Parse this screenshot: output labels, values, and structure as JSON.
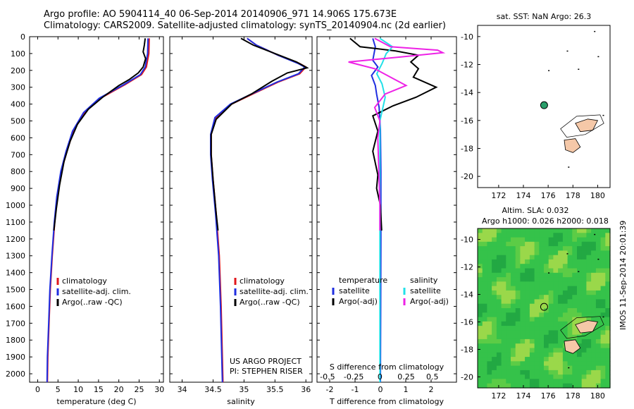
{
  "header": {
    "line1": "Argo profile: AO 5904114_40 06-Sep-2014 20140906_971 14.906S 175.673E",
    "line2": "Climatology: CARS2009. Satellite-adjusted climatology: synTS_20140904.nc (2d earlier)"
  },
  "colors": {
    "climatology": "#e0161b",
    "satellite": "#1f2ee0",
    "argo": "#000000",
    "sat_salinity": "#22e0e8",
    "argo_salinity": "#ee22e6",
    "land": "#f5c8a8",
    "float_marker": "#2a9e6a",
    "sla_green": "#35c24a"
  },
  "watermark": "IMOS 11-Sep-2014 20:01:39",
  "chart_data": [
    {
      "type": "line",
      "id": "temperature",
      "xlabel": "temperature (deg C)",
      "ylabel": "",
      "xlim": [
        -2,
        31
      ],
      "ylim": [
        2050,
        0
      ],
      "xticks": [
        0,
        5,
        10,
        15,
        20,
        25,
        30
      ],
      "yticks": [
        0,
        100,
        200,
        300,
        400,
        500,
        600,
        700,
        800,
        900,
        1000,
        1100,
        1200,
        1300,
        1400,
        1500,
        1600,
        1700,
        1800,
        1900,
        2000
      ],
      "legend": [
        "climatology",
        "satellite-adj. clim.",
        "Argo(..raw -QC)"
      ],
      "series": [
        {
          "name": "climatology",
          "color_key": "climatology",
          "points": [
            [
              27.5,
              10
            ],
            [
              27.4,
              100
            ],
            [
              26.8,
              180
            ],
            [
              25.6,
              225
            ],
            [
              21.5,
              285
            ],
            [
              15.5,
              365
            ],
            [
              11.5,
              450
            ],
            [
              8.8,
              560
            ],
            [
              7.2,
              680
            ],
            [
              5.8,
              800
            ],
            [
              4.8,
              950
            ],
            [
              4.2,
              1100
            ],
            [
              3.6,
              1300
            ],
            [
              3.1,
              1500
            ],
            [
              2.8,
              1700
            ],
            [
              2.5,
              1900
            ],
            [
              2.4,
              2050
            ]
          ]
        },
        {
          "name": "satellite-adj. clim.",
          "color_key": "satellite",
          "points": [
            [
              27.2,
              10
            ],
            [
              27.1,
              100
            ],
            [
              26.5,
              180
            ],
            [
              25.3,
              225
            ],
            [
              21.2,
              285
            ],
            [
              15.2,
              365
            ],
            [
              11.3,
              450
            ],
            [
              8.6,
              560
            ],
            [
              7.0,
              680
            ],
            [
              5.7,
              800
            ],
            [
              4.7,
              950
            ],
            [
              4.1,
              1100
            ],
            [
              3.5,
              1300
            ],
            [
              3.0,
              1500
            ],
            [
              2.7,
              1700
            ],
            [
              2.4,
              1900
            ],
            [
              2.3,
              2050
            ]
          ]
        },
        {
          "name": "Argo(..raw -QC)",
          "color_key": "argo",
          "points": [
            [
              26.5,
              10
            ],
            [
              26.3,
              50
            ],
            [
              26.0,
              90
            ],
            [
              26.6,
              130
            ],
            [
              26.0,
              180
            ],
            [
              24.8,
              215
            ],
            [
              22.5,
              255
            ],
            [
              20.0,
              290
            ],
            [
              16.0,
              360
            ],
            [
              12.5,
              430
            ],
            [
              9.8,
              520
            ],
            [
              8.0,
              620
            ],
            [
              6.5,
              740
            ],
            [
              5.4,
              880
            ],
            [
              4.6,
              1020
            ],
            [
              4.0,
              1150
            ]
          ]
        }
      ]
    },
    {
      "type": "line",
      "id": "salinity",
      "xlabel": "salinity",
      "ylabel": "",
      "xlim": [
        33.8,
        36.1
      ],
      "ylim": [
        2050,
        0
      ],
      "xticks": [
        34,
        34.5,
        35,
        35.5,
        36
      ],
      "legend": [
        "climatology",
        "satellite-adj. clim.",
        "Argo(..raw -QC)"
      ],
      "annotation": [
        "US ARGO PROJECT",
        "PI: STEPHEN RISER"
      ],
      "series": [
        {
          "name": "climatology",
          "color_key": "climatology",
          "points": [
            [
              35.05,
              10
            ],
            [
              35.2,
              50
            ],
            [
              35.55,
              110
            ],
            [
              35.9,
              160
            ],
            [
              36.0,
              180
            ],
            [
              35.9,
              220
            ],
            [
              35.55,
              270
            ],
            [
              35.2,
              330
            ],
            [
              34.8,
              400
            ],
            [
              34.55,
              480
            ],
            [
              34.47,
              580
            ],
            [
              34.47,
              700
            ],
            [
              34.5,
              850
            ],
            [
              34.55,
              1050
            ],
            [
              34.6,
              1300
            ],
            [
              34.63,
              1600
            ],
            [
              34.66,
              2050
            ]
          ]
        },
        {
          "name": "satellite-adj. clim.",
          "color_key": "satellite",
          "points": [
            [
              35.05,
              10
            ],
            [
              35.2,
              50
            ],
            [
              35.55,
              110
            ],
            [
              35.88,
              160
            ],
            [
              35.98,
              180
            ],
            [
              35.88,
              220
            ],
            [
              35.53,
              270
            ],
            [
              35.18,
              330
            ],
            [
              34.78,
              400
            ],
            [
              34.53,
              480
            ],
            [
              34.46,
              580
            ],
            [
              34.46,
              700
            ],
            [
              34.49,
              850
            ],
            [
              34.54,
              1050
            ],
            [
              34.59,
              1300
            ],
            [
              34.62,
              1600
            ],
            [
              34.65,
              2050
            ]
          ]
        },
        {
          "name": "Argo(..raw -QC)",
          "color_key": "argo",
          "points": [
            [
              34.95,
              10
            ],
            [
              35.15,
              50
            ],
            [
              35.5,
              100
            ],
            [
              35.85,
              150
            ],
            [
              36.02,
              185
            ],
            [
              35.7,
              215
            ],
            [
              35.45,
              265
            ],
            [
              35.12,
              340
            ],
            [
              34.8,
              400
            ],
            [
              34.55,
              490
            ],
            [
              34.47,
              580
            ],
            [
              34.47,
              700
            ],
            [
              34.5,
              850
            ],
            [
              34.55,
              1050
            ],
            [
              34.58,
              1150
            ]
          ]
        }
      ]
    },
    {
      "type": "line",
      "id": "difference",
      "xlabel": "T difference from climatology",
      "xlabel2": "S difference from climatology",
      "xlim": [
        -2.5,
        3
      ],
      "xlim2": [
        -0.6,
        0.73
      ],
      "ylim": [
        2050,
        0
      ],
      "xticks": [
        -2,
        -1,
        0,
        1,
        2
      ],
      "xticks2": [
        -0.5,
        -0.25,
        0,
        0.25,
        0.5
      ],
      "xticklabels2": [
        "-0.5",
        "-0.25",
        "0",
        "0.25",
        "0.5"
      ],
      "legend_titles": [
        "temperature",
        "salinity"
      ],
      "legend": [
        "satellite",
        "Argo(-adj)",
        "satellite",
        "Argo(-adj)"
      ],
      "series": [
        {
          "name": "satellite",
          "group": "temperature",
          "color_key": "satellite",
          "points": [
            [
              -0.3,
              10
            ],
            [
              -0.2,
              60
            ],
            [
              -0.25,
              100
            ],
            [
              -0.3,
              140
            ],
            [
              -0.1,
              180
            ],
            [
              -0.35,
              230
            ],
            [
              -0.2,
              290
            ],
            [
              -0.15,
              340
            ],
            [
              -0.05,
              420
            ],
            [
              0.0,
              550
            ],
            [
              0.02,
              800
            ],
            [
              0.02,
              1200
            ],
            [
              0.01,
              1600
            ],
            [
              0.0,
              2050
            ]
          ]
        },
        {
          "name": "Argo(-adj)",
          "group": "temperature",
          "color_key": "argo",
          "points": [
            [
              -1.2,
              10
            ],
            [
              -0.8,
              60
            ],
            [
              -0.2,
              70
            ],
            [
              0.6,
              85
            ],
            [
              1.5,
              110
            ],
            [
              1.2,
              150
            ],
            [
              1.5,
              190
            ],
            [
              1.3,
              240
            ],
            [
              2.2,
              300
            ],
            [
              1.4,
              360
            ],
            [
              0.5,
              410
            ],
            [
              -0.3,
              470
            ],
            [
              -0.1,
              560
            ],
            [
              -0.3,
              680
            ],
            [
              -0.1,
              820
            ],
            [
              -0.15,
              900
            ],
            [
              0.0,
              1000
            ],
            [
              0.05,
              1150
            ]
          ]
        },
        {
          "name": "satellite",
          "group": "salinity",
          "color_key": "sat_salinity",
          "points": [
            [
              0.0,
              10
            ],
            [
              0.12,
              60
            ],
            [
              0.06,
              100
            ],
            [
              0.02,
              160
            ],
            [
              -0.03,
              220
            ],
            [
              0.02,
              280
            ],
            [
              0.05,
              360
            ],
            [
              0.0,
              500
            ],
            [
              0.0,
              800
            ],
            [
              0.0,
              1400
            ],
            [
              0.0,
              2050
            ]
          ]
        },
        {
          "name": "Argo(-adj)",
          "group": "salinity",
          "color_key": "argo_salinity",
          "points": [
            [
              -0.05,
              10
            ],
            [
              0.1,
              60
            ],
            [
              0.55,
              80
            ],
            [
              0.6,
              95
            ],
            [
              0.2,
              120
            ],
            [
              -0.3,
              150
            ],
            [
              -0.05,
              190
            ],
            [
              0.1,
              240
            ],
            [
              0.25,
              290
            ],
            [
              0.05,
              340
            ],
            [
              -0.05,
              420
            ],
            [
              0.0,
              500
            ],
            [
              -0.02,
              600
            ],
            [
              -0.01,
              800
            ],
            [
              0.0,
              1000
            ],
            [
              0.0,
              1150
            ]
          ]
        }
      ]
    },
    {
      "type": "scatter",
      "id": "sst_map",
      "title": "sat. SST: NaN Argo: 26.3",
      "xlim": [
        170.3,
        181
      ],
      "ylim": [
        -20.8,
        -9.2
      ],
      "xticks": [
        172,
        174,
        176,
        178,
        180
      ],
      "yticks": [
        -10,
        -12,
        -14,
        -16,
        -18,
        -20
      ],
      "float_position": [
        175.673,
        -14.906
      ]
    },
    {
      "type": "heatmap",
      "id": "sla_map",
      "title_line1": "Altim. SLA: 0.032",
      "title_line2": "Argo h1000: 0.026 h2000: 0.018",
      "xlim": [
        170.3,
        181
      ],
      "ylim": [
        -20.8,
        -9.2
      ],
      "xticks": [
        172,
        174,
        176,
        178,
        180
      ],
      "yticks": [
        -10,
        -12,
        -14,
        -16,
        -18,
        -20
      ],
      "float_position": [
        175.673,
        -14.906
      ]
    }
  ]
}
